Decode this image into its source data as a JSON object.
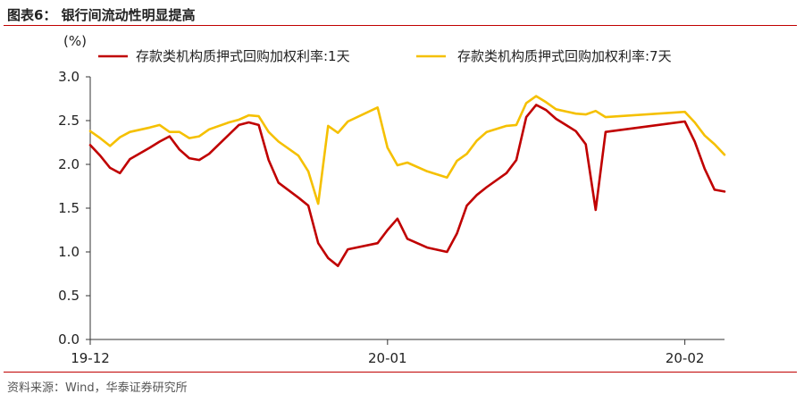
{
  "header": {
    "title": "图表6：  银行间流动性明显提高"
  },
  "footer": {
    "source": "资料来源：Wind，华泰证券研究所"
  },
  "chart_data": {
    "type": "line",
    "ylabel": "(%)",
    "ylim": [
      0,
      3.0
    ],
    "yticks": [
      "0.0",
      "0.5",
      "1.0",
      "1.5",
      "2.0",
      "2.5",
      "3.0"
    ],
    "x_range": [
      0,
      64
    ],
    "xticks": [
      {
        "label": "19-12",
        "x": 0
      },
      {
        "label": "20-01",
        "x": 30
      },
      {
        "label": "20-02",
        "x": 60
      }
    ],
    "legend_position": "top",
    "grid": false,
    "series": [
      {
        "name": "存款类机构质押式回购加权利率:1天",
        "color": "#c00000",
        "points": [
          [
            0,
            2.22
          ],
          [
            1,
            2.1
          ],
          [
            2,
            1.96
          ],
          [
            3,
            1.9
          ],
          [
            4,
            2.06
          ],
          [
            6,
            2.19
          ],
          [
            7,
            2.26
          ],
          [
            8,
            2.32
          ],
          [
            9,
            2.17
          ],
          [
            10,
            2.07
          ],
          [
            11,
            2.05
          ],
          [
            12,
            2.12
          ],
          [
            14,
            2.34
          ],
          [
            15,
            2.45
          ],
          [
            16,
            2.48
          ],
          [
            17,
            2.45
          ],
          [
            18,
            2.05
          ],
          [
            19,
            1.79
          ],
          [
            21,
            1.62
          ],
          [
            22,
            1.53
          ],
          [
            23,
            1.1
          ],
          [
            24,
            0.93
          ],
          [
            25,
            0.84
          ],
          [
            26,
            1.03
          ],
          [
            29,
            1.1
          ],
          [
            30,
            1.25
          ],
          [
            31,
            1.38
          ],
          [
            32,
            1.15
          ],
          [
            34,
            1.05
          ],
          [
            36,
            1.0
          ],
          [
            37,
            1.21
          ],
          [
            38,
            1.53
          ],
          [
            39,
            1.65
          ],
          [
            40,
            1.74
          ],
          [
            42,
            1.9
          ],
          [
            43,
            2.05
          ],
          [
            44,
            2.54
          ],
          [
            45,
            2.68
          ],
          [
            46,
            2.62
          ],
          [
            47,
            2.52
          ],
          [
            49,
            2.38
          ],
          [
            50,
            2.23
          ],
          [
            51,
            1.48
          ],
          [
            52,
            2.37
          ],
          [
            60,
            2.49
          ],
          [
            61,
            2.26
          ],
          [
            62,
            1.95
          ],
          [
            63,
            1.71
          ],
          [
            64,
            1.69
          ]
        ]
      },
      {
        "name": "存款类机构质押式回购加权利率:7天",
        "color": "#f5c000",
        "points": [
          [
            0,
            2.38
          ],
          [
            1,
            2.3
          ],
          [
            2,
            2.21
          ],
          [
            3,
            2.31
          ],
          [
            4,
            2.37
          ],
          [
            6,
            2.42
          ],
          [
            7,
            2.45
          ],
          [
            8,
            2.37
          ],
          [
            9,
            2.37
          ],
          [
            10,
            2.3
          ],
          [
            11,
            2.32
          ],
          [
            12,
            2.4
          ],
          [
            14,
            2.48
          ],
          [
            15,
            2.51
          ],
          [
            16,
            2.56
          ],
          [
            17,
            2.55
          ],
          [
            18,
            2.37
          ],
          [
            19,
            2.26
          ],
          [
            21,
            2.1
          ],
          [
            22,
            1.92
          ],
          [
            23,
            1.55
          ],
          [
            24,
            2.44
          ],
          [
            25,
            2.36
          ],
          [
            26,
            2.49
          ],
          [
            29,
            2.65
          ],
          [
            30,
            2.19
          ],
          [
            31,
            1.99
          ],
          [
            32,
            2.02
          ],
          [
            34,
            1.92
          ],
          [
            36,
            1.85
          ],
          [
            37,
            2.04
          ],
          [
            38,
            2.12
          ],
          [
            39,
            2.27
          ],
          [
            40,
            2.37
          ],
          [
            42,
            2.44
          ],
          [
            43,
            2.45
          ],
          [
            44,
            2.7
          ],
          [
            45,
            2.78
          ],
          [
            46,
            2.71
          ],
          [
            47,
            2.63
          ],
          [
            49,
            2.58
          ],
          [
            50,
            2.57
          ],
          [
            51,
            2.61
          ],
          [
            52,
            2.54
          ],
          [
            60,
            2.6
          ],
          [
            61,
            2.48
          ],
          [
            62,
            2.33
          ],
          [
            63,
            2.23
          ],
          [
            64,
            2.11
          ]
        ]
      }
    ]
  }
}
